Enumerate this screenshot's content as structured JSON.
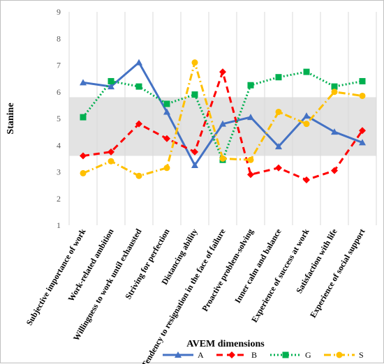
{
  "chart_data": {
    "type": "line",
    "title": "",
    "xlabel": "AVEM dimensions",
    "ylabel": "Stanine",
    "ylim": [
      1,
      9
    ],
    "yticks": [
      1,
      2,
      3,
      4,
      5,
      6,
      7,
      8,
      9
    ],
    "grid": "vertical",
    "shaded_band": [
      3.6,
      5.8
    ],
    "legend_position": "bottom",
    "categories": [
      "Subjective importance of work",
      "Work-related ambition",
      "Willingness to work until exhausted",
      "Striving for perfection",
      "Distancing ability",
      "Tendency to resignation in the face of failure",
      "Proactive problem-solving",
      "Inner calm and balance",
      "Experience of success at work",
      "Satisfaction with life",
      "Experience of social support"
    ],
    "series": [
      {
        "name": "A",
        "color": "#4472c4",
        "dash": "",
        "marker": "triangle",
        "values": [
          6.35,
          6.2,
          7.1,
          5.25,
          3.25,
          4.8,
          5.05,
          3.95,
          5.1,
          4.5,
          4.1
        ]
      },
      {
        "name": "B",
        "color": "#ff0000",
        "dash": "9,6",
        "marker": "diamond",
        "values": [
          3.6,
          3.75,
          4.8,
          4.25,
          3.75,
          6.75,
          2.9,
          3.15,
          2.7,
          3.05,
          4.55
        ]
      },
      {
        "name": "G",
        "color": "#00b050",
        "dash": "2,3",
        "marker": "square",
        "values": [
          5.05,
          6.4,
          6.2,
          5.55,
          5.9,
          3.45,
          6.25,
          6.55,
          6.75,
          6.2,
          6.4
        ]
      },
      {
        "name": "S",
        "color": "#ffc000",
        "dash": "10,4,2,4",
        "marker": "circle",
        "values": [
          2.95,
          3.4,
          2.85,
          3.15,
          7.1,
          3.5,
          3.45,
          5.25,
          4.8,
          6.0,
          5.85
        ]
      }
    ]
  }
}
